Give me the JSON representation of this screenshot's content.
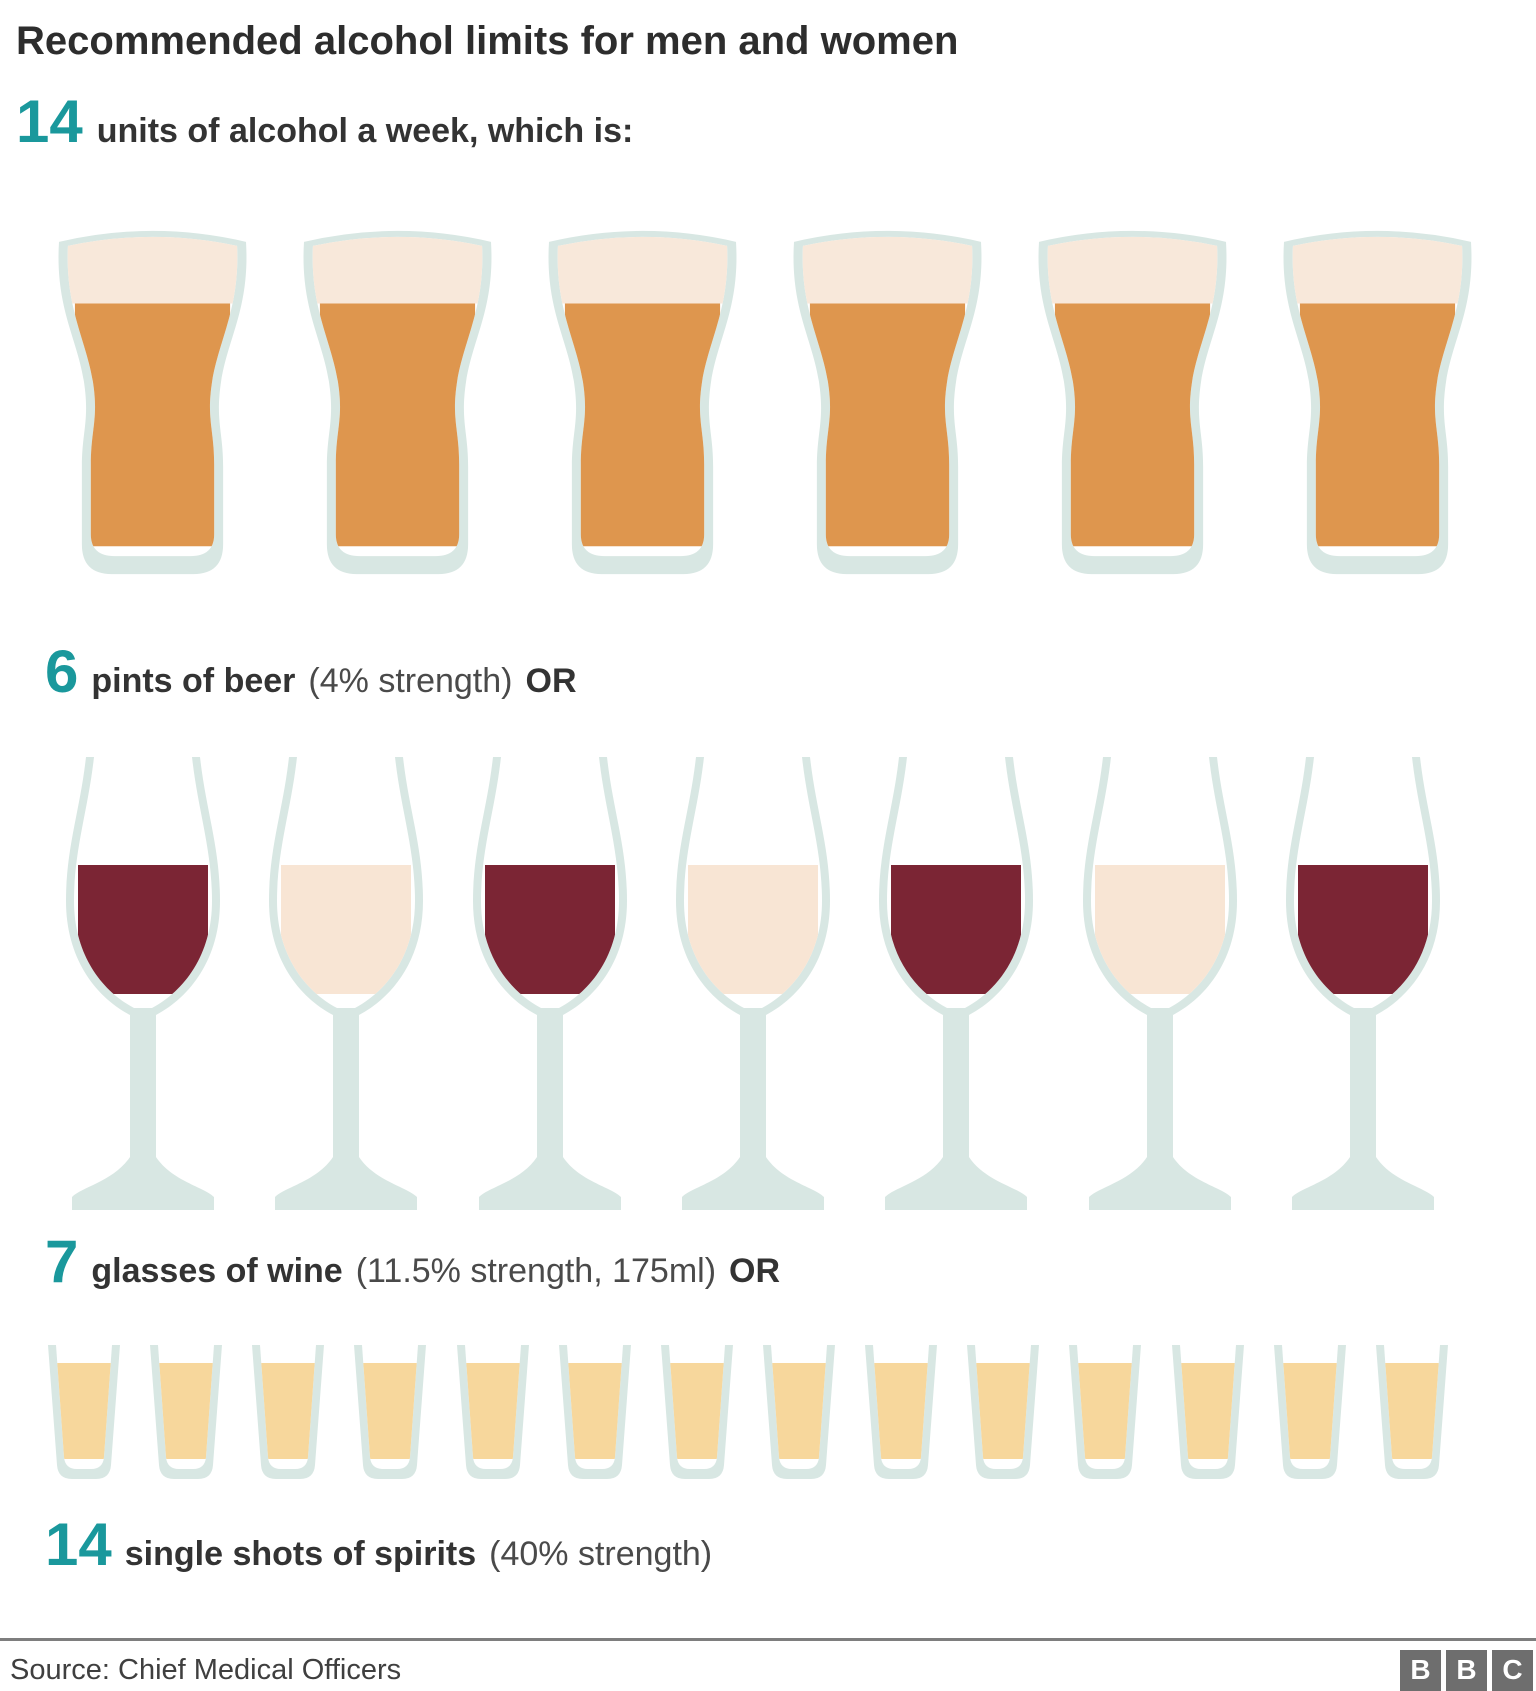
{
  "title": "Recommended alcohol limits for men and women",
  "intro": {
    "number": "14",
    "label": "units of alcohol a week, which is:"
  },
  "rows": [
    {
      "type": "beer",
      "count": 6,
      "number": "6",
      "label_bold": "pints of beer",
      "label_normal": "(4% strength)",
      "label_suffix": "OR",
      "fills": [
        "beer",
        "beer",
        "beer",
        "beer",
        "beer",
        "beer"
      ]
    },
    {
      "type": "wine",
      "count": 7,
      "number": "7",
      "label_bold": "glasses of wine",
      "label_normal": "(11.5% strength, 175ml)",
      "label_suffix": "OR",
      "fills": [
        "red",
        "white",
        "red",
        "white",
        "red",
        "white",
        "red"
      ]
    },
    {
      "type": "shot",
      "count": 14,
      "number": "14",
      "label_bold": "single shots of spirits",
      "label_normal": "(40% strength)",
      "label_suffix": "",
      "fills": [
        "spirit",
        "spirit",
        "spirit",
        "spirit",
        "spirit",
        "spirit",
        "spirit",
        "spirit",
        "spirit",
        "spirit",
        "spirit",
        "spirit",
        "spirit",
        "spirit"
      ]
    }
  ],
  "footer": {
    "source": "Source: Chief Medical Officers",
    "logo_letters": [
      "B",
      "B",
      "C"
    ]
  },
  "colors": {
    "accent_teal": "#1a989c",
    "glass": "#d8e7e3",
    "beer": "#de964e",
    "foam": "#f8e8da",
    "red_wine": "#7b2534",
    "white_wine": "#f8e5d4",
    "spirit": "#f7d79c",
    "title_text": "#2d2d2d",
    "bold_text": "#333333",
    "normal_text": "#4a4a4a",
    "divider": "#7e7e7e",
    "bbc_grey": "#6e6e6e"
  },
  "chart_data": {
    "type": "bar",
    "variant": "pictogram",
    "title": "Recommended alcohol limits for men and women",
    "subtitle": "14 units of alcohol a week, which is:",
    "categories": [
      "pints of beer (4% strength)",
      "glasses of wine (11.5% strength, 175ml)",
      "single shots of spirits (40% strength)"
    ],
    "values": [
      6,
      7,
      14
    ],
    "unit_equivalent_per_week": 14,
    "source": "Source: Chief Medical Officers",
    "legend_position": "none",
    "grid": false
  }
}
